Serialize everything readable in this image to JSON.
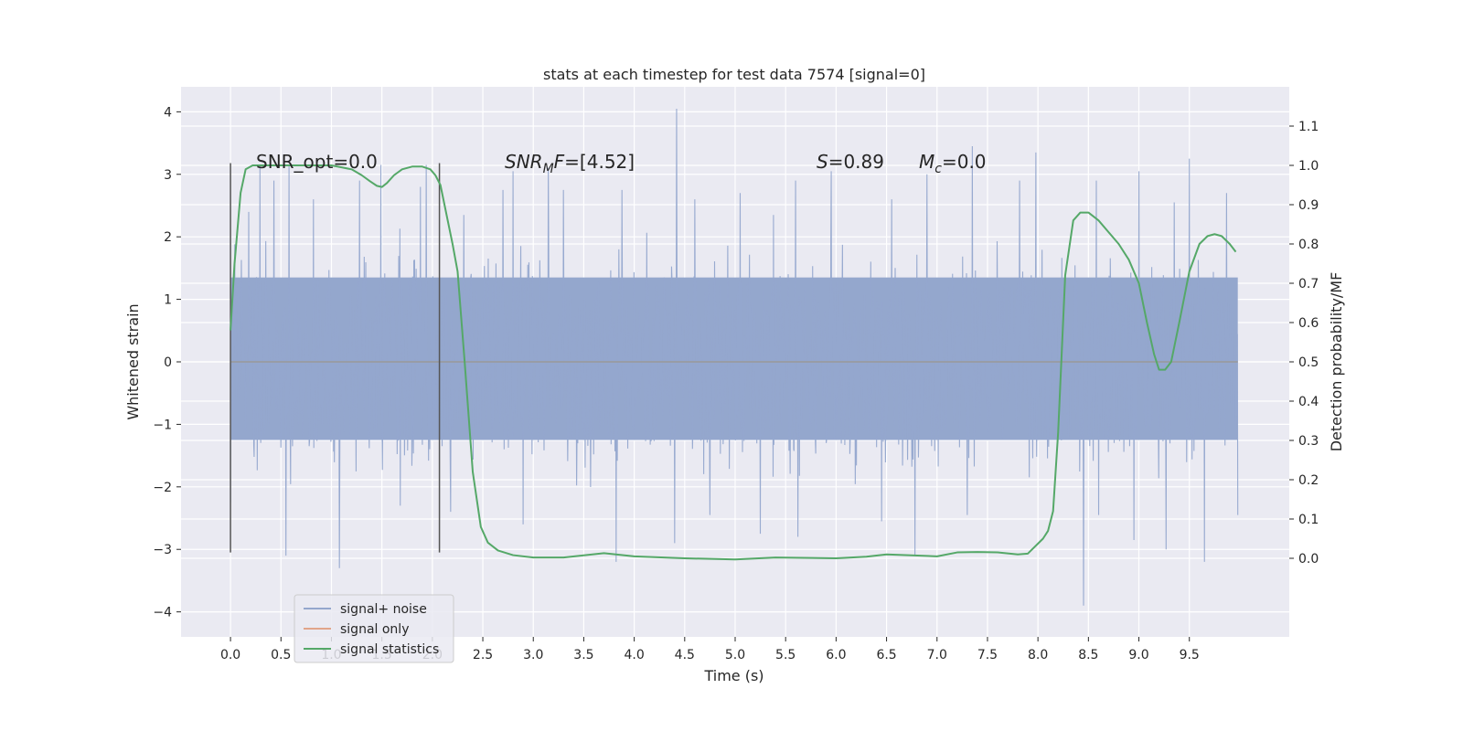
{
  "chart_data": {
    "type": "line",
    "title": "stats at each timestep for test data 7574 [signal=0]",
    "xlabel": "Time (s)",
    "ylabel_left": "Whitened strain",
    "ylabel_right": "Detection probability/MF",
    "xlim": [
      -0.49,
      10.49
    ],
    "ylim_left": [
      -4.4,
      4.4
    ],
    "ylim_right": [
      -0.2,
      1.2
    ],
    "x_ticks": [
      0.0,
      0.5,
      1.0,
      1.5,
      2.0,
      2.5,
      3.0,
      3.5,
      4.0,
      4.5,
      5.0,
      5.5,
      6.0,
      6.5,
      7.0,
      7.5,
      8.0,
      8.5,
      9.0,
      9.5
    ],
    "x_tick_labels": [
      "0.0",
      "0.5",
      "1.0",
      "1.5",
      "2.0",
      "2.5",
      "3.0",
      "3.5",
      "4.0",
      "4.5",
      "5.0",
      "5.5",
      "6.0",
      "6.5",
      "7.0",
      "7.5",
      "8.0",
      "8.5",
      "9.0",
      "9.5"
    ],
    "y_left_ticks": [
      -4,
      -3,
      -2,
      -1,
      0,
      1,
      2,
      3,
      4
    ],
    "y_left_tick_labels": [
      "−4",
      "−3",
      "−2",
      "−1",
      "0",
      "1",
      "2",
      "3",
      "4"
    ],
    "y_right_ticks": [
      0.0,
      0.1,
      0.2,
      0.3,
      0.4,
      0.5,
      0.6,
      0.7,
      0.8,
      0.9,
      1.0,
      1.1
    ],
    "y_right_tick_labels": [
      "0.0",
      "0.1",
      "0.2",
      "0.3",
      "0.4",
      "0.5",
      "0.6",
      "0.7",
      "0.8",
      "0.9",
      "1.0",
      "1.1"
    ],
    "grid": true,
    "legend": {
      "location": "lower-left",
      "entries": [
        {
          "label": "signal+ noise",
          "color": "#94a7cd"
        },
        {
          "label": "signal only",
          "color": "#e1a58a"
        },
        {
          "label": "signal statistics",
          "color": "#55a868"
        }
      ]
    },
    "annotations": {
      "snr_opt": "SNR_opt=0.0",
      "snr_mf_main": "SNR",
      "snr_mf_sub": "M",
      "snr_mf_rest": "F=[4.52]",
      "s_italic": "S",
      "s_value": "=0.89",
      "mc_main": "M",
      "mc_sub": "c",
      "mc_value": "=0.0"
    },
    "window_markers_x": [
      0.0,
      2.07
    ],
    "noise_envelope": {
      "x_range": [
        0.0,
        9.98
      ],
      "core_band": [
        -1.25,
        1.35
      ],
      "upper_peaks": [
        [
          0.18,
          2.4
        ],
        [
          0.29,
          3.15
        ],
        [
          0.43,
          2.9
        ],
        [
          0.58,
          3.15
        ],
        [
          0.82,
          2.6
        ],
        [
          1.08,
          3.1
        ],
        [
          1.28,
          2.9
        ],
        [
          1.49,
          3.15
        ],
        [
          1.88,
          2.8
        ],
        [
          1.94,
          3.15
        ],
        [
          2.31,
          2.35
        ],
        [
          2.7,
          2.75
        ],
        [
          2.8,
          3.05
        ],
        [
          3.15,
          3.1
        ],
        [
          3.3,
          2.75
        ],
        [
          3.88,
          2.75
        ],
        [
          4.42,
          4.05
        ],
        [
          4.6,
          2.6
        ],
        [
          5.05,
          2.7
        ],
        [
          5.38,
          2.35
        ],
        [
          5.6,
          2.9
        ],
        [
          5.95,
          3.05
        ],
        [
          6.55,
          2.6
        ],
        [
          6.9,
          3.0
        ],
        [
          7.35,
          3.45
        ],
        [
          7.82,
          2.9
        ],
        [
          7.98,
          3.35
        ],
        [
          8.58,
          2.9
        ],
        [
          9.0,
          3.05
        ],
        [
          9.35,
          2.55
        ],
        [
          9.5,
          3.25
        ],
        [
          9.87,
          2.7
        ]
      ],
      "lower_peaks": [
        [
          0.0,
          -2.25
        ],
        [
          0.55,
          -3.1
        ],
        [
          1.08,
          -3.3
        ],
        [
          1.68,
          -2.3
        ],
        [
          2.18,
          -2.4
        ],
        [
          2.9,
          -2.6
        ],
        [
          3.82,
          -3.2
        ],
        [
          4.4,
          -2.9
        ],
        [
          4.75,
          -2.45
        ],
        [
          5.25,
          -2.75
        ],
        [
          5.62,
          -2.8
        ],
        [
          6.45,
          -2.55
        ],
        [
          6.78,
          -3.1
        ],
        [
          7.3,
          -2.45
        ],
        [
          8.45,
          -3.9
        ],
        [
          8.6,
          -2.45
        ],
        [
          8.95,
          -2.85
        ],
        [
          9.27,
          -3.0
        ],
        [
          9.65,
          -3.2
        ],
        [
          9.98,
          -2.45
        ]
      ]
    },
    "series": [
      {
        "name": "signal+ noise",
        "axis": "left",
        "color": "#94a7cd",
        "x_range": [
          0.0,
          9.98
        ],
        "note": "dense noisy strain trace"
      },
      {
        "name": "signal only",
        "axis": "left",
        "color": "#e1a58a",
        "x": [
          0.0,
          9.98
        ],
        "y": [
          0.0,
          0.0
        ]
      },
      {
        "name": "signal statistics",
        "axis": "right",
        "color": "#55a868",
        "x": [
          0.0,
          0.04,
          0.1,
          0.15,
          0.22,
          0.3,
          0.5,
          0.8,
          1.0,
          1.1,
          1.2,
          1.3,
          1.38,
          1.45,
          1.5,
          1.55,
          1.62,
          1.7,
          1.8,
          1.9,
          1.98,
          2.03,
          2.08,
          2.12,
          2.16,
          2.2,
          2.25,
          2.32,
          2.4,
          2.48,
          2.55,
          2.65,
          2.8,
          3.0,
          3.3,
          3.7,
          4.0,
          4.5,
          5.0,
          5.4,
          6.0,
          6.3,
          6.5,
          7.0,
          7.2,
          7.4,
          7.6,
          7.8,
          7.9,
          8.05,
          8.1,
          8.15,
          8.2,
          8.27,
          8.35,
          8.42,
          8.5,
          8.6,
          8.7,
          8.8,
          8.9,
          9.0,
          9.08,
          9.15,
          9.2,
          9.26,
          9.32,
          9.4,
          9.5,
          9.6,
          9.68,
          9.75,
          9.82,
          9.9,
          9.96
        ],
        "y": [
          0.58,
          0.75,
          0.93,
          0.99,
          1.0,
          1.0,
          1.0,
          1.0,
          1.0,
          0.995,
          0.99,
          0.975,
          0.96,
          0.948,
          0.945,
          0.955,
          0.975,
          0.99,
          0.997,
          0.997,
          0.99,
          0.975,
          0.95,
          0.9,
          0.85,
          0.8,
          0.73,
          0.5,
          0.22,
          0.08,
          0.04,
          0.02,
          0.008,
          0.002,
          0.002,
          0.013,
          0.005,
          0.0,
          -0.003,
          0.002,
          0.0,
          0.004,
          0.01,
          0.005,
          0.015,
          0.016,
          0.015,
          0.01,
          0.012,
          0.05,
          0.07,
          0.12,
          0.32,
          0.72,
          0.86,
          0.88,
          0.88,
          0.86,
          0.83,
          0.8,
          0.76,
          0.7,
          0.6,
          0.52,
          0.48,
          0.48,
          0.5,
          0.6,
          0.73,
          0.8,
          0.82,
          0.825,
          0.82,
          0.8,
          0.78
        ]
      }
    ]
  }
}
